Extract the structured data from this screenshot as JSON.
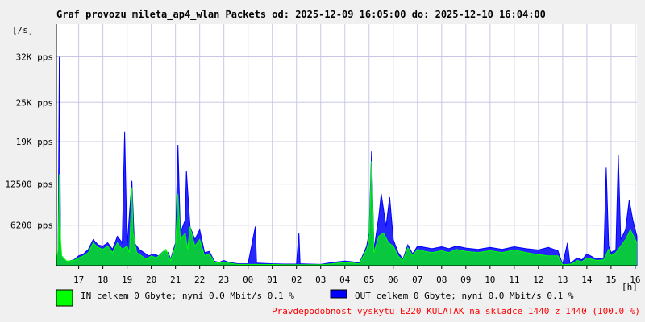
{
  "chart_data": {
    "type": "area",
    "title": "Graf provozu mileta_ap4_wlan Packets od: 2025-12-09 16:05:00 do: 2025-12-10 16:04:00",
    "ylabel": "[/s]",
    "xlabel": "[h]",
    "yticks": [
      {
        "value": 6200,
        "label": "6200 pps"
      },
      {
        "value": 12500,
        "label": "12500 pps"
      },
      {
        "value": 19000,
        "label": "19K pps"
      },
      {
        "value": 25000,
        "label": "25K pps"
      },
      {
        "value": 32000,
        "label": "32K pps"
      }
    ],
    "ylim": [
      0,
      37000
    ],
    "xlim": [
      16.08,
      40.07
    ],
    "xticks": [
      {
        "value": 17,
        "label": "17"
      },
      {
        "value": 18,
        "label": "18"
      },
      {
        "value": 19,
        "label": "19"
      },
      {
        "value": 20,
        "label": "20"
      },
      {
        "value": 21,
        "label": "21"
      },
      {
        "value": 22,
        "label": "22"
      },
      {
        "value": 23,
        "label": "23"
      },
      {
        "value": 24,
        "label": "00"
      },
      {
        "value": 25,
        "label": "01"
      },
      {
        "value": 26,
        "label": "02"
      },
      {
        "value": 27,
        "label": "03"
      },
      {
        "value": 28,
        "label": "04"
      },
      {
        "value": 29,
        "label": "05"
      },
      {
        "value": 30,
        "label": "06"
      },
      {
        "value": 31,
        "label": "07"
      },
      {
        "value": 32,
        "label": "08"
      },
      {
        "value": 33,
        "label": "09"
      },
      {
        "value": 34,
        "label": "10"
      },
      {
        "value": 35,
        "label": "11"
      },
      {
        "value": 36,
        "label": "12"
      },
      {
        "value": 37,
        "label": "13"
      },
      {
        "value": 38,
        "label": "14"
      },
      {
        "value": 39,
        "label": "15"
      },
      {
        "value": 40,
        "label": "16"
      }
    ],
    "grid": true,
    "series": [
      {
        "name": "IN",
        "color": "#00ff00",
        "points": [
          [
            16.08,
            500
          ],
          [
            16.15,
            2500
          ],
          [
            16.2,
            14000
          ],
          [
            16.25,
            4000
          ],
          [
            16.3,
            1500
          ],
          [
            16.5,
            700
          ],
          [
            16.8,
            800
          ],
          [
            17.0,
            1200
          ],
          [
            17.2,
            1500
          ],
          [
            17.4,
            2000
          ],
          [
            17.6,
            3500
          ],
          [
            17.8,
            2800
          ],
          [
            18.0,
            2500
          ],
          [
            18.2,
            3000
          ],
          [
            18.4,
            2000
          ],
          [
            18.6,
            3500
          ],
          [
            18.8,
            2500
          ],
          [
            19.0,
            3000
          ],
          [
            19.1,
            2000
          ],
          [
            19.2,
            12000
          ],
          [
            19.25,
            5000
          ],
          [
            19.4,
            2000
          ],
          [
            19.6,
            1500
          ],
          [
            19.8,
            1000
          ],
          [
            20.0,
            1500
          ],
          [
            20.2,
            1200
          ],
          [
            20.4,
            1800
          ],
          [
            20.6,
            2500
          ],
          [
            20.8,
            800
          ],
          [
            21.0,
            3000
          ],
          [
            21.1,
            11000
          ],
          [
            21.2,
            4000
          ],
          [
            21.4,
            5000
          ],
          [
            21.5,
            2500
          ],
          [
            21.6,
            6000
          ],
          [
            21.8,
            3000
          ],
          [
            22.0,
            4000
          ],
          [
            22.2,
            1500
          ],
          [
            22.4,
            1800
          ],
          [
            22.6,
            500
          ],
          [
            22.8,
            400
          ],
          [
            23.0,
            600
          ],
          [
            23.2,
            400
          ],
          [
            23.4,
            300
          ],
          [
            23.6,
            200
          ],
          [
            23.8,
            200
          ],
          [
            24.0,
            200
          ],
          [
            24.5,
            200
          ],
          [
            25.0,
            200
          ],
          [
            25.5,
            150
          ],
          [
            26.0,
            150
          ],
          [
            26.5,
            150
          ],
          [
            27.0,
            150
          ],
          [
            27.5,
            300
          ],
          [
            28.0,
            500
          ],
          [
            28.3,
            400
          ],
          [
            28.6,
            300
          ],
          [
            28.9,
            2500
          ],
          [
            29.0,
            4000
          ],
          [
            29.1,
            16000
          ],
          [
            29.2,
            2000
          ],
          [
            29.4,
            4500
          ],
          [
            29.6,
            5000
          ],
          [
            29.8,
            3500
          ],
          [
            30.0,
            3000
          ],
          [
            30.2,
            1500
          ],
          [
            30.4,
            800
          ],
          [
            30.6,
            2800
          ],
          [
            30.8,
            1500
          ],
          [
            31.0,
            2500
          ],
          [
            31.3,
            2200
          ],
          [
            31.6,
            2000
          ],
          [
            32.0,
            2300
          ],
          [
            32.3,
            2000
          ],
          [
            32.6,
            2500
          ],
          [
            33.0,
            2200
          ],
          [
            33.5,
            2000
          ],
          [
            34.0,
            2300
          ],
          [
            34.5,
            2000
          ],
          [
            35.0,
            2400
          ],
          [
            35.5,
            2000
          ],
          [
            36.0,
            1700
          ],
          [
            36.4,
            1500
          ],
          [
            36.8,
            1500
          ],
          [
            37.0,
            150
          ],
          [
            37.2,
            200
          ],
          [
            37.4,
            300
          ],
          [
            37.6,
            800
          ],
          [
            37.8,
            600
          ],
          [
            38.0,
            1200
          ],
          [
            38.2,
            1000
          ],
          [
            38.4,
            800
          ],
          [
            38.7,
            900
          ],
          [
            38.9,
            2500
          ],
          [
            39.0,
            1500
          ],
          [
            39.2,
            2000
          ],
          [
            39.4,
            3000
          ],
          [
            39.6,
            4000
          ],
          [
            39.8,
            5500
          ],
          [
            40.07,
            3500
          ]
        ]
      },
      {
        "name": "OUT",
        "color": "#0000ff",
        "points": [
          [
            16.08,
            400
          ],
          [
            16.15,
            2000
          ],
          [
            16.2,
            32000
          ],
          [
            16.25,
            3000
          ],
          [
            16.3,
            1200
          ],
          [
            16.5,
            600
          ],
          [
            16.8,
            900
          ],
          [
            17.0,
            1500
          ],
          [
            17.2,
            1800
          ],
          [
            17.4,
            2500
          ],
          [
            17.6,
            4000
          ],
          [
            17.8,
            3200
          ],
          [
            18.0,
            3000
          ],
          [
            18.2,
            3500
          ],
          [
            18.4,
            2500
          ],
          [
            18.6,
            4500
          ],
          [
            18.8,
            3500
          ],
          [
            18.9,
            20500
          ],
          [
            19.0,
            3000
          ],
          [
            19.2,
            13000
          ],
          [
            19.3,
            3500
          ],
          [
            19.5,
            2500
          ],
          [
            19.7,
            2000
          ],
          [
            19.9,
            1500
          ],
          [
            20.1,
            1800
          ],
          [
            20.3,
            1500
          ],
          [
            20.5,
            2200
          ],
          [
            20.7,
            2000
          ],
          [
            20.8,
            1000
          ],
          [
            21.0,
            3500
          ],
          [
            21.1,
            18500
          ],
          [
            21.2,
            5000
          ],
          [
            21.4,
            7000
          ],
          [
            21.45,
            14500
          ],
          [
            21.6,
            6000
          ],
          [
            21.8,
            4000
          ],
          [
            22.0,
            5500
          ],
          [
            22.2,
            2000
          ],
          [
            22.4,
            2200
          ],
          [
            22.6,
            700
          ],
          [
            22.8,
            500
          ],
          [
            23.0,
            800
          ],
          [
            23.2,
            500
          ],
          [
            23.4,
            400
          ],
          [
            23.6,
            300
          ],
          [
            23.8,
            300
          ],
          [
            24.0,
            300
          ],
          [
            24.3,
            6000
          ],
          [
            24.35,
            400
          ],
          [
            25.0,
            300
          ],
          [
            25.5,
            250
          ],
          [
            26.0,
            250
          ],
          [
            26.1,
            5000
          ],
          [
            26.15,
            300
          ],
          [
            26.5,
            250
          ],
          [
            27.0,
            200
          ],
          [
            27.5,
            500
          ],
          [
            28.0,
            700
          ],
          [
            28.3,
            600
          ],
          [
            28.6,
            400
          ],
          [
            28.9,
            3000
          ],
          [
            29.0,
            5000
          ],
          [
            29.1,
            17500
          ],
          [
            29.2,
            2500
          ],
          [
            29.4,
            7500
          ],
          [
            29.5,
            11000
          ],
          [
            29.7,
            6000
          ],
          [
            29.85,
            10500
          ],
          [
            30.0,
            4000
          ],
          [
            30.2,
            2000
          ],
          [
            30.4,
            1000
          ],
          [
            30.6,
            3200
          ],
          [
            30.8,
            1800
          ],
          [
            31.0,
            3000
          ],
          [
            31.3,
            2800
          ],
          [
            31.6,
            2600
          ],
          [
            32.0,
            2900
          ],
          [
            32.3,
            2600
          ],
          [
            32.6,
            3000
          ],
          [
            33.0,
            2700
          ],
          [
            33.5,
            2500
          ],
          [
            34.0,
            2800
          ],
          [
            34.5,
            2500
          ],
          [
            35.0,
            2900
          ],
          [
            35.5,
            2600
          ],
          [
            36.0,
            2400
          ],
          [
            36.4,
            2800
          ],
          [
            36.8,
            2300
          ],
          [
            37.0,
            200
          ],
          [
            37.2,
            3500
          ],
          [
            37.3,
            300
          ],
          [
            37.6,
            1200
          ],
          [
            37.8,
            900
          ],
          [
            38.0,
            1800
          ],
          [
            38.2,
            1400
          ],
          [
            38.4,
            1000
          ],
          [
            38.7,
            1200
          ],
          [
            38.8,
            15000
          ],
          [
            38.9,
            3000
          ],
          [
            39.0,
            2000
          ],
          [
            39.2,
            2500
          ],
          [
            39.3,
            17000
          ],
          [
            39.4,
            4000
          ],
          [
            39.6,
            5500
          ],
          [
            39.75,
            10000
          ],
          [
            39.9,
            7000
          ],
          [
            40.07,
            4500
          ]
        ]
      }
    ]
  },
  "legend": {
    "in_label": "IN celkem 0 Gbyte; nyní   0.0 Mbit/s 0.1 %",
    "out_label": "OUT celkem 0 Gbyte; nyní   0.0 Mbit/s 0.1 %"
  },
  "footer": "Pravdepodobnost vyskytu E220 KULATAK na skladce 1440 z 1440 (100.0 %)",
  "colors": {
    "background": "#f0f0f0",
    "plot_background": "#ffffff",
    "grid": "#c8c8e6",
    "footer_text": "#ff0000"
  }
}
